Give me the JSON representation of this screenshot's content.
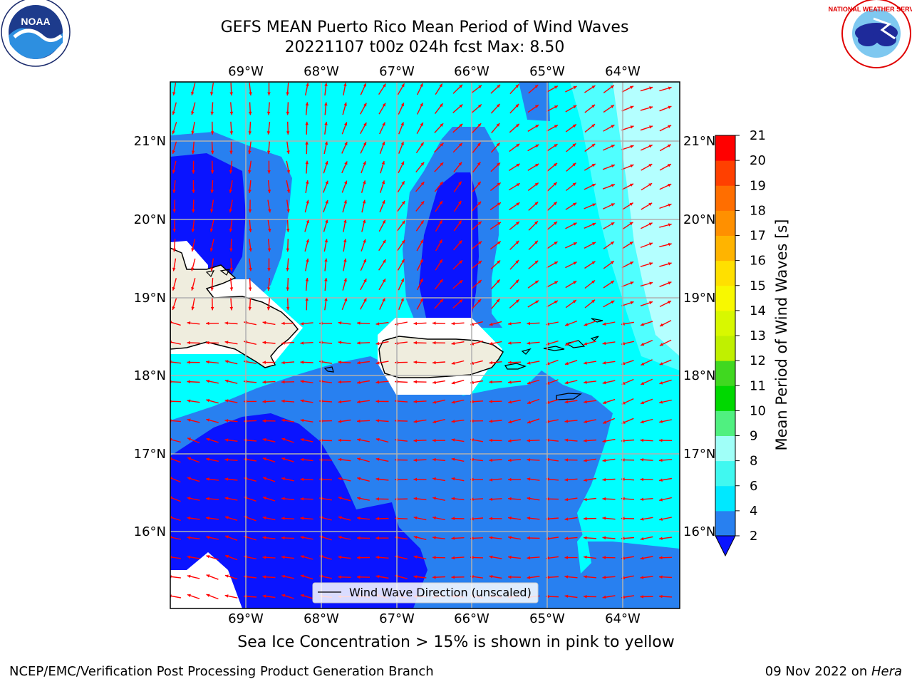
{
  "title_line1": "GEFS MEAN Puerto Rico Mean Period of Wind Waves",
  "title_line2": "20221107 t00z 024h fcst   Max: 8.50",
  "lon_labels": [
    "69°W",
    "68°W",
    "67°W",
    "66°W",
    "65°W",
    "64°W"
  ],
  "lat_labels": [
    "21°N",
    "20°N",
    "19°N",
    "18°N",
    "17°N",
    "16°N"
  ],
  "legend_label": "Wind Wave Direction (unscaled)",
  "colorbar": {
    "label": "Mean Period of Wind Waves [s]",
    "ticks": [
      "2",
      "4",
      "6",
      "8",
      "9",
      "10",
      "11",
      "12",
      "13",
      "14",
      "15",
      "16",
      "17",
      "18",
      "19",
      "20",
      "21"
    ],
    "band_colors": [
      "#2880f0",
      "#00e8ff",
      "#40f8f0",
      "#a0fff8",
      "#50f080",
      "#00d800",
      "#40d820",
      "#c0f000",
      "#d8f800",
      "#f8f800",
      "#ffe000",
      "#ffb400",
      "#ff9000",
      "#ff6e00",
      "#ff4000",
      "#ff0000"
    ],
    "under_color": "#0a14ff"
  },
  "colors": {
    "deep_blue": "#0a14ff",
    "mid_blue": "#2880f0",
    "cyan": "#00ffff",
    "light_cyan": "#50ffff",
    "pale_cyan": "#b4ffff",
    "land": "#efedde",
    "arrow": "#ff0000"
  },
  "sea_ice_note": "Sea Ice Concentration > 15% is shown in pink to yellow",
  "footer_left": "NCEP/EMC/Verification Post Processing Product Generation Branch",
  "footer_date": "09 Nov 2022 on ",
  "footer_host": "Hera",
  "logo_left": "NOAA",
  "logo_right": "NATIONAL WEATHER SERVICE"
}
